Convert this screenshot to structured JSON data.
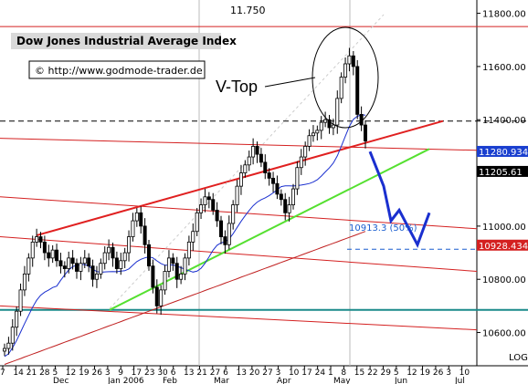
{
  "chart_data": {
    "type": "candlestick",
    "title": "Dow Jones Industrial Average Index",
    "source": "© http://www.godmode-trader.de",
    "annotation": "V-Top",
    "top_level_label": "11.750",
    "fib_label": "10913.3 (50%)",
    "ylim": [
      10475,
      11850
    ],
    "y_ticks": [
      {
        "value": 10600,
        "label": "10600.00"
      },
      {
        "value": 10800,
        "label": "10800.00"
      },
      {
        "value": 11000,
        "label": "11000.00"
      },
      {
        "value": 11200,
        "label": "11200.00"
      },
      {
        "value": 11400,
        "label": "11400.00"
      },
      {
        "value": 11600,
        "label": "11600.00"
      },
      {
        "value": 11800,
        "label": "11800.00"
      }
    ],
    "price_tags": [
      {
        "value": 11280.934,
        "label": "11280.934",
        "bg": "#1a3fcf",
        "fg": "#ffffff"
      },
      {
        "value": 11205.61,
        "label": "11205.61",
        "bg": "#000000",
        "fg": "#ffffff"
      },
      {
        "value": 10928.434,
        "label": "10928.434",
        "bg": "#d42020",
        "fg": "#ffffff"
      }
    ],
    "log_label": "LOG",
    "x_ticks": [
      "7",
      "14",
      "21",
      "28",
      "5",
      "12",
      "19",
      "26",
      "3",
      "9",
      "17",
      "23",
      "30",
      "6",
      "13",
      "21",
      "27",
      "6",
      "13",
      "20",
      "27",
      "3",
      "10",
      "17",
      "24",
      "1",
      "8",
      "15",
      "22",
      "29",
      "5",
      "12",
      "19",
      "26",
      "3",
      "10"
    ],
    "month_labels": [
      "Dec",
      "Jan 2006",
      "Feb",
      "Mar",
      "Apr",
      "May",
      "Jun",
      "Jul"
    ],
    "close_series": [
      10540,
      10560,
      10620,
      10680,
      10760,
      10820,
      10880,
      10940,
      10960,
      10940,
      10900,
      10880,
      10910,
      10870,
      10850,
      10840,
      10880,
      10860,
      10830,
      10860,
      10880,
      10850,
      10800,
      10820,
      10860,
      10900,
      10920,
      10880,
      10840,
      10870,
      10900,
      10960,
      11020,
      11050,
      11000,
      10930,
      10850,
      10770,
      10700,
      10760,
      10830,
      10880,
      10860,
      10800,
      10820,
      10880,
      10940,
      10980,
      11050,
      11080,
      11110,
      11100,
      11060,
      11020,
      10960,
      10930,
      11010,
      11080,
      11150,
      11200,
      11230,
      11260,
      11300,
      11270,
      11240,
      11200,
      11180,
      11160,
      11120,
      11100,
      11050,
      11080,
      11140,
      11220,
      11260,
      11300,
      11340,
      11350,
      11360,
      11390,
      11400,
      11370,
      11380,
      11480,
      11560,
      11610,
      11640,
      11600,
      11420,
      11380,
      11320
    ],
    "forecast_path": [
      [
        11205,
        11280
      ],
      [
        11207,
        11150
      ],
      [
        11214,
        11020
      ],
      [
        11221,
        11060
      ],
      [
        11228,
        10930
      ],
      [
        11235,
        11050
      ]
    ],
    "lines": [
      {
        "name": "upper-channel",
        "color": "#e02020"
      },
      {
        "name": "lower-channel",
        "color": "#55e030"
      },
      {
        "name": "support",
        "color": "#1a8a8a"
      },
      {
        "name": "ma-short",
        "color": "#1a2fcf"
      },
      {
        "name": "ma-long",
        "color": "#c02020"
      }
    ]
  }
}
